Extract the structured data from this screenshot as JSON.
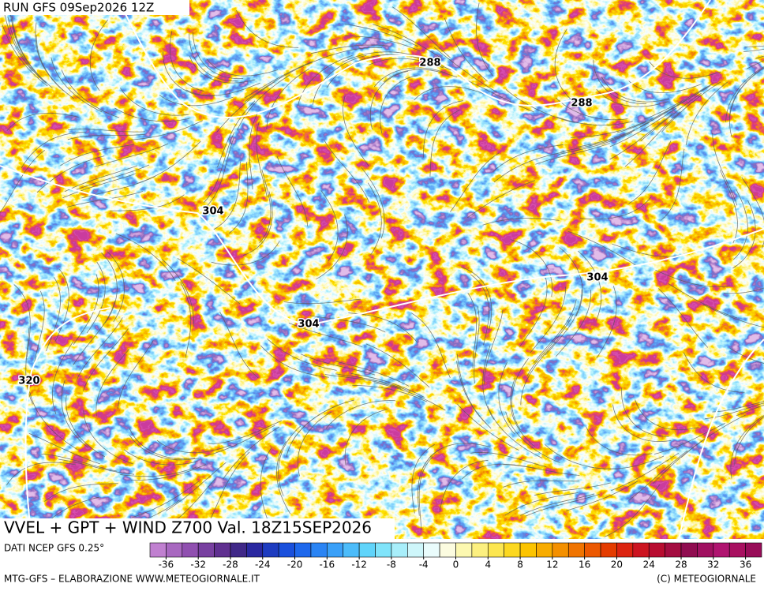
{
  "header": {
    "run": "RUN GFS 09Sep2026 12Z"
  },
  "map": {
    "title": "VVEL + GPT + WIND Z700 Val. 18Z15SEP2026",
    "contour_labels": [
      "288",
      "288",
      "304",
      "304",
      "304",
      "320"
    ]
  },
  "legend": {
    "source": "DATI NCEP GFS 0.25°",
    "lim": [
      -38,
      38
    ],
    "ticks": [
      -36,
      -32,
      -28,
      -24,
      -20,
      -16,
      -12,
      -8,
      -4,
      0,
      4,
      8,
      12,
      16,
      20,
      24,
      28,
      32,
      36
    ],
    "colors": [
      "#c080d0",
      "#a868c0",
      "#9050b0",
      "#7840a0",
      "#603090",
      "#402888",
      "#2a28a0",
      "#1e3cc0",
      "#1a50dc",
      "#1e68ec",
      "#2a84f4",
      "#3aa0f8",
      "#4cbcfa",
      "#60d4fa",
      "#80e4fa",
      "#a8eefa",
      "#cef6fa",
      "#eafcfc",
      "#fcfce0",
      "#fcf8b0",
      "#fcf080",
      "#fce650",
      "#fcd820",
      "#fcc400",
      "#f8ac00",
      "#f49000",
      "#f07400",
      "#ec5800",
      "#e43c00",
      "#dc2410",
      "#cc1420",
      "#b80c30",
      "#a40c40",
      "#900c50",
      "#a01060",
      "#b01470",
      "#a81060",
      "#980c58"
    ]
  },
  "footer": {
    "left": "MTG-GFS – ELABORAZIONE WWW.METEOGIORNALE.IT",
    "right": "(C) METEOGIORNALE"
  }
}
